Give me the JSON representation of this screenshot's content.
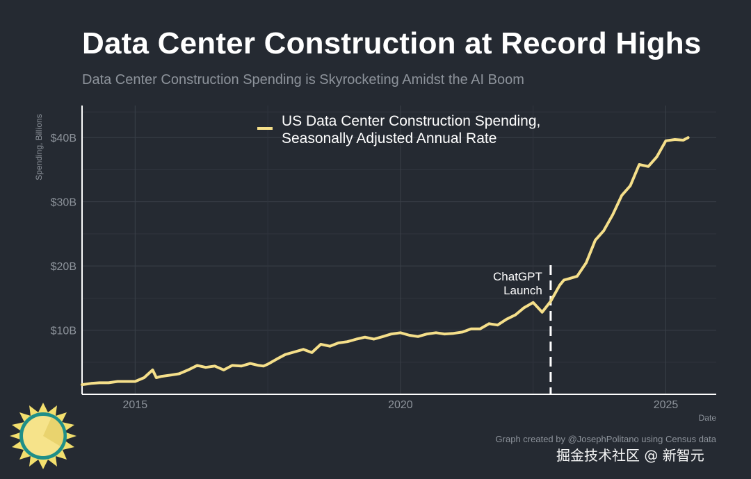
{
  "chart_data": {
    "type": "line",
    "title": "Data Center Construction at Record Highs",
    "subtitle": "Data Center Construction Spending is Skyrocketing Amidst the AI Boom",
    "xlabel": "Date",
    "ylabel": "Spending, Billions",
    "xlim": [
      2014.0,
      2025.95
    ],
    "ylim": [
      0,
      45
    ],
    "x_ticks": [
      2015,
      2020,
      2025
    ],
    "x_tick_labels": [
      "2015",
      "2020",
      "2025"
    ],
    "y_ticks": [
      10,
      20,
      30,
      40
    ],
    "y_tick_labels": [
      "$10B",
      "$20B",
      "$30B",
      "$40B"
    ],
    "grid": true,
    "legend_position": "top",
    "series": [
      {
        "name": "US Data Center Construction Spending, Seasonally Adjusted Annual Rate",
        "color": "#f5df8a",
        "x": [
          2014.0,
          2014.17,
          2014.33,
          2014.5,
          2014.67,
          2014.83,
          2015.0,
          2015.17,
          2015.33,
          2015.4,
          2015.5,
          2015.67,
          2015.83,
          2016.0,
          2016.17,
          2016.33,
          2016.5,
          2016.67,
          2016.83,
          2017.0,
          2017.17,
          2017.33,
          2017.42,
          2017.5,
          2017.67,
          2017.83,
          2018.0,
          2018.17,
          2018.33,
          2018.5,
          2018.67,
          2018.83,
          2019.0,
          2019.17,
          2019.33,
          2019.5,
          2019.67,
          2019.83,
          2020.0,
          2020.17,
          2020.33,
          2020.5,
          2020.67,
          2020.83,
          2021.0,
          2021.17,
          2021.33,
          2021.5,
          2021.67,
          2021.83,
          2022.0,
          2022.17,
          2022.33,
          2022.5,
          2022.67,
          2022.83,
          2023.0,
          2023.08,
          2023.17,
          2023.33,
          2023.5,
          2023.67,
          2023.83,
          2024.0,
          2024.17,
          2024.33,
          2024.5,
          2024.67,
          2024.83,
          2025.0,
          2025.17,
          2025.33,
          2025.42
        ],
        "values": [
          1.5,
          1.7,
          1.8,
          1.8,
          2.0,
          2.0,
          2.0,
          2.6,
          3.8,
          2.6,
          2.8,
          3.0,
          3.2,
          3.8,
          4.5,
          4.2,
          4.4,
          3.8,
          4.5,
          4.4,
          4.8,
          4.5,
          4.4,
          4.7,
          5.5,
          6.2,
          6.6,
          7.0,
          6.5,
          7.8,
          7.5,
          8.0,
          8.2,
          8.6,
          8.9,
          8.6,
          9.0,
          9.4,
          9.6,
          9.2,
          9.0,
          9.4,
          9.6,
          9.4,
          9.5,
          9.7,
          10.2,
          10.2,
          11.0,
          10.8,
          11.7,
          12.4,
          13.5,
          14.3,
          12.8,
          14.5,
          17.0,
          17.8,
          18.0,
          18.4,
          20.5,
          24.0,
          25.5,
          28.0,
          31.0,
          32.5,
          35.8,
          35.5,
          37.0,
          39.5,
          39.7,
          39.6,
          40.0
        ]
      }
    ],
    "annotations": [
      {
        "x": 2022.83,
        "lines": [
          "ChatGPT",
          "Launch"
        ],
        "style": "dashed-vertical"
      }
    ],
    "caption": "Graph created by @JosephPolitano using Census data",
    "watermark": "掘金技术社区 @ 新智元"
  }
}
